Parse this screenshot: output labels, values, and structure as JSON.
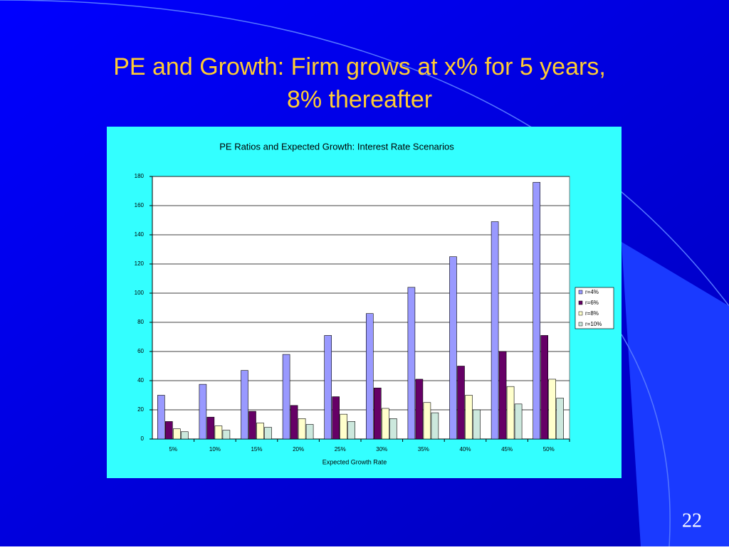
{
  "slide": {
    "title_lines": [
      "PE and Growth: Firm grows at x% for 5 years,",
      "8% thereafter"
    ],
    "page_number": 22
  },
  "chart_data": {
    "type": "bar",
    "title": "PE Ratios and Expected Growth: Interest Rate Scenarios",
    "x_label": "Expected Growth Rate",
    "categories": [
      "5%",
      "10%",
      "15%",
      "20%",
      "25%",
      "30%",
      "35%",
      "40%",
      "45%",
      "50%"
    ],
    "series": [
      {
        "name": "r=4%",
        "color": "#9999ff",
        "values": [
          30,
          37.5,
          47,
          58,
          71,
          86,
          104,
          125,
          149,
          176
        ]
      },
      {
        "name": "r=6%",
        "color": "#660066",
        "values": [
          12,
          15,
          19,
          23,
          29,
          35,
          41,
          50,
          60,
          71
        ]
      },
      {
        "name": "r=8%",
        "color": "#ffffcc",
        "values": [
          7,
          9,
          11,
          14,
          17,
          21,
          25,
          30,
          36,
          41
        ]
      },
      {
        "name": "r=10%",
        "color": "#cce8dd",
        "values": [
          5,
          6,
          8,
          10,
          12,
          14,
          18,
          20,
          24,
          28
        ]
      }
    ],
    "ylim": [
      0,
      180
    ],
    "yticks": [
      0,
      20,
      40,
      60,
      80,
      100,
      120,
      140,
      160,
      180
    ],
    "grid": true,
    "legend": "right"
  }
}
